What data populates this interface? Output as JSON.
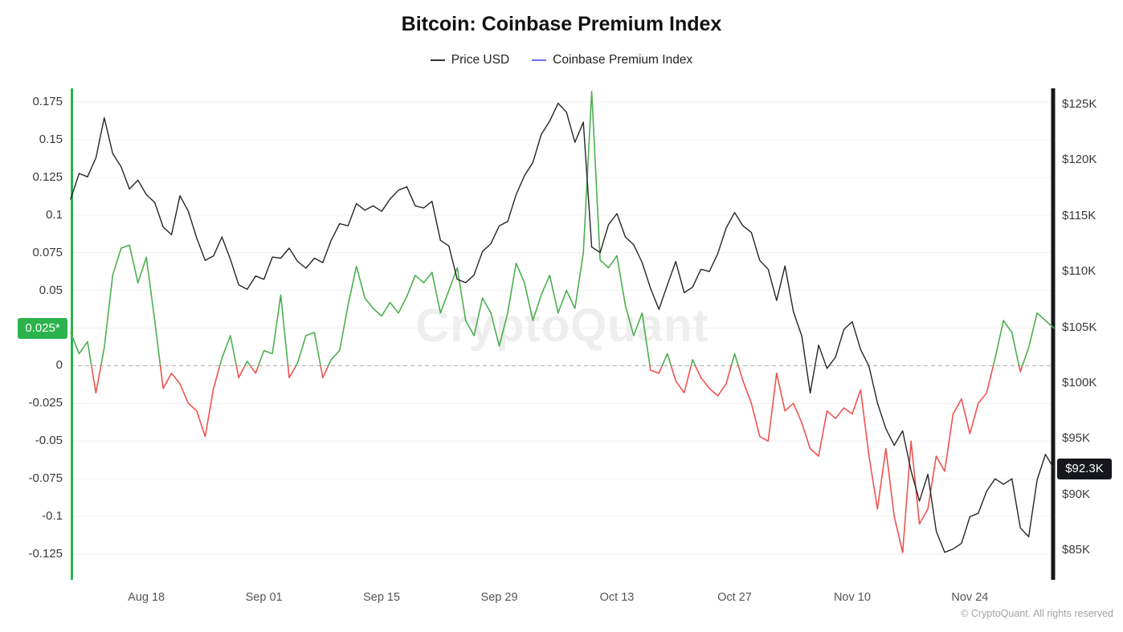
{
  "title": "Bitcoin: Coinbase Premium Index",
  "watermark": "CryptoQuant",
  "footer": "© CryptoQuant. All rights reserved",
  "legend": [
    {
      "label": "Price USD",
      "color": "#333333"
    },
    {
      "label": "Coinbase Premium Index",
      "color": "#756bee"
    }
  ],
  "chart_data": {
    "type": "line",
    "x": [
      "Aug 9",
      "Aug 10",
      "Aug 11",
      "Aug 12",
      "Aug 13",
      "Aug 14",
      "Aug 15",
      "Aug 16",
      "Aug 17",
      "Aug 18",
      "Aug 19",
      "Aug 20",
      "Aug 21",
      "Aug 22",
      "Aug 23",
      "Aug 24",
      "Aug 25",
      "Aug 26",
      "Aug 27",
      "Aug 28",
      "Aug 29",
      "Aug 30",
      "Aug 31",
      "Sep 1",
      "Sep 2",
      "Sep 3",
      "Sep 4",
      "Sep 5",
      "Sep 6",
      "Sep 7",
      "Sep 8",
      "Sep 9",
      "Sep 10",
      "Sep 11",
      "Sep 12",
      "Sep 13",
      "Sep 14",
      "Sep 15",
      "Sep 16",
      "Sep 17",
      "Sep 18",
      "Sep 19",
      "Sep 20",
      "Sep 21",
      "Sep 22",
      "Sep 23",
      "Sep 24",
      "Sep 25",
      "Sep 26",
      "Sep 27",
      "Sep 28",
      "Sep 29",
      "Sep 30",
      "Oct 1",
      "Oct 2",
      "Oct 3",
      "Oct 4",
      "Oct 5",
      "Oct 6",
      "Oct 7",
      "Oct 8",
      "Oct 9",
      "Oct 10",
      "Oct 11",
      "Oct 12",
      "Oct 13",
      "Oct 14",
      "Oct 15",
      "Oct 16",
      "Oct 17",
      "Oct 18",
      "Oct 19",
      "Oct 20",
      "Oct 21",
      "Oct 22",
      "Oct 23",
      "Oct 24",
      "Oct 25",
      "Oct 26",
      "Oct 27",
      "Oct 28",
      "Oct 29",
      "Oct 30",
      "Oct 31",
      "Nov 1",
      "Nov 2",
      "Nov 3",
      "Nov 4",
      "Nov 5",
      "Nov 6",
      "Nov 7",
      "Nov 8",
      "Nov 9",
      "Nov 10",
      "Nov 11",
      "Nov 12",
      "Nov 13",
      "Nov 14",
      "Nov 15",
      "Nov 16",
      "Nov 17",
      "Nov 18",
      "Nov 19",
      "Nov 20",
      "Nov 21",
      "Nov 22",
      "Nov 23",
      "Nov 24",
      "Nov 25",
      "Nov 26",
      "Nov 27",
      "Nov 28",
      "Nov 29",
      "Nov 30",
      "Dec 1",
      "Dec 2",
      "Dec 3",
      "Dec 4"
    ],
    "x_tick_indices": [
      9,
      23,
      37,
      51,
      65,
      79,
      93,
      107
    ],
    "x_tick_labels": [
      "Aug 18",
      "Sep 01",
      "Sep 15",
      "Sep 29",
      "Oct 13",
      "Oct 27",
      "Nov 10",
      "Nov 24"
    ],
    "series": [
      {
        "name": "Price USD",
        "axis": "right",
        "unit": "K USD",
        "color": "#262626",
        "values": [
          116.5,
          118.8,
          118.5,
          120.2,
          123.8,
          120.6,
          119.4,
          117.4,
          118.2,
          116.9,
          116.2,
          114.0,
          113.3,
          116.8,
          115.4,
          113.0,
          111.0,
          111.4,
          113.1,
          111.1,
          108.8,
          108.4,
          109.6,
          109.3,
          111.3,
          111.2,
          112.1,
          110.9,
          110.3,
          111.2,
          110.8,
          112.8,
          114.3,
          114.1,
          116.1,
          115.5,
          115.9,
          115.4,
          116.5,
          117.3,
          117.6,
          115.9,
          115.7,
          116.3,
          112.8,
          112.3,
          109.3,
          109.0,
          109.7,
          111.8,
          112.5,
          114.1,
          114.5,
          116.9,
          118.6,
          119.8,
          122.3,
          123.5,
          125.1,
          124.3,
          121.6,
          123.4,
          112.2,
          111.7,
          114.2,
          115.2,
          113.1,
          112.4,
          110.8,
          108.5,
          106.6,
          108.8,
          110.9,
          108.1,
          108.6,
          110.2,
          110.0,
          111.6,
          113.9,
          115.3,
          114.1,
          113.5,
          111.0,
          110.2,
          107.4,
          110.5,
          106.4,
          104.2,
          99.1,
          103.4,
          101.3,
          102.3,
          104.8,
          105.5,
          103.0,
          101.5,
          98.2,
          95.9,
          94.4,
          95.7,
          92.1,
          89.4,
          91.8,
          86.7,
          84.8,
          85.1,
          85.6,
          88.0,
          88.3,
          90.3,
          91.4,
          90.9,
          91.4,
          87.0,
          86.2,
          91.3,
          93.6,
          92.3
        ]
      },
      {
        "name": "Coinbase Premium Index",
        "axis": "left",
        "positive_color": "#4caf50",
        "negative_color": "#ef5350",
        "values": [
          0.022,
          0.008,
          0.016,
          -0.018,
          0.012,
          0.06,
          0.078,
          0.08,
          0.055,
          0.072,
          0.03,
          -0.015,
          -0.005,
          -0.012,
          -0.025,
          -0.03,
          -0.047,
          -0.015,
          0.005,
          0.02,
          -0.008,
          0.003,
          -0.005,
          0.01,
          0.008,
          0.047,
          -0.008,
          0.002,
          0.02,
          0.022,
          -0.008,
          0.004,
          0.01,
          0.04,
          0.066,
          0.045,
          0.038,
          0.033,
          0.042,
          0.035,
          0.046,
          0.06,
          0.055,
          0.062,
          0.035,
          0.05,
          0.065,
          0.03,
          0.02,
          0.045,
          0.035,
          0.013,
          0.035,
          0.068,
          0.055,
          0.03,
          0.047,
          0.06,
          0.035,
          0.05,
          0.038,
          0.075,
          0.182,
          0.07,
          0.065,
          0.073,
          0.04,
          0.02,
          0.035,
          -0.003,
          -0.005,
          0.008,
          -0.01,
          -0.018,
          0.004,
          -0.008,
          -0.015,
          -0.02,
          -0.012,
          0.008,
          -0.01,
          -0.025,
          -0.047,
          -0.05,
          -0.005,
          -0.03,
          -0.025,
          -0.038,
          -0.055,
          -0.06,
          -0.03,
          -0.035,
          -0.028,
          -0.032,
          -0.016,
          -0.06,
          -0.095,
          -0.055,
          -0.1,
          -0.124,
          -0.05,
          -0.105,
          -0.095,
          -0.06,
          -0.07,
          -0.032,
          -0.022,
          -0.045,
          -0.025,
          -0.018,
          0.005,
          0.03,
          0.022,
          -0.004,
          0.012,
          0.035,
          0.03,
          0.025
        ]
      }
    ],
    "left_axis": {
      "ticks": [
        0.175,
        0.15,
        0.125,
        0.1,
        0.075,
        0.05,
        0.025,
        0,
        -0.025,
        -0.05,
        -0.075,
        -0.1,
        -0.125
      ],
      "tick_labels": [
        "0.175",
        "0.15",
        "0.125",
        "0.1",
        "0.075",
        "0.05",
        "0.025",
        "0",
        "-0.025",
        "-0.05",
        "-0.075",
        "-0.1",
        "-0.125"
      ],
      "axis_color": "#2bb24c",
      "zero_line": "dashed",
      "current_value": 0.025,
      "current_label": "0.025*"
    },
    "right_axis": {
      "ticks": [
        125,
        120,
        115,
        110,
        105,
        100,
        95,
        90,
        85
      ],
      "tick_labels": [
        "$125K",
        "$120K",
        "$115K",
        "$110K",
        "$105K",
        "$100K",
        "$95K",
        "$90K",
        "$85K"
      ],
      "axis_color": "#15171c",
      "current_value": 92.3,
      "current_label": "$92.3K"
    },
    "grid": "horizontal",
    "legend_position": "top"
  }
}
